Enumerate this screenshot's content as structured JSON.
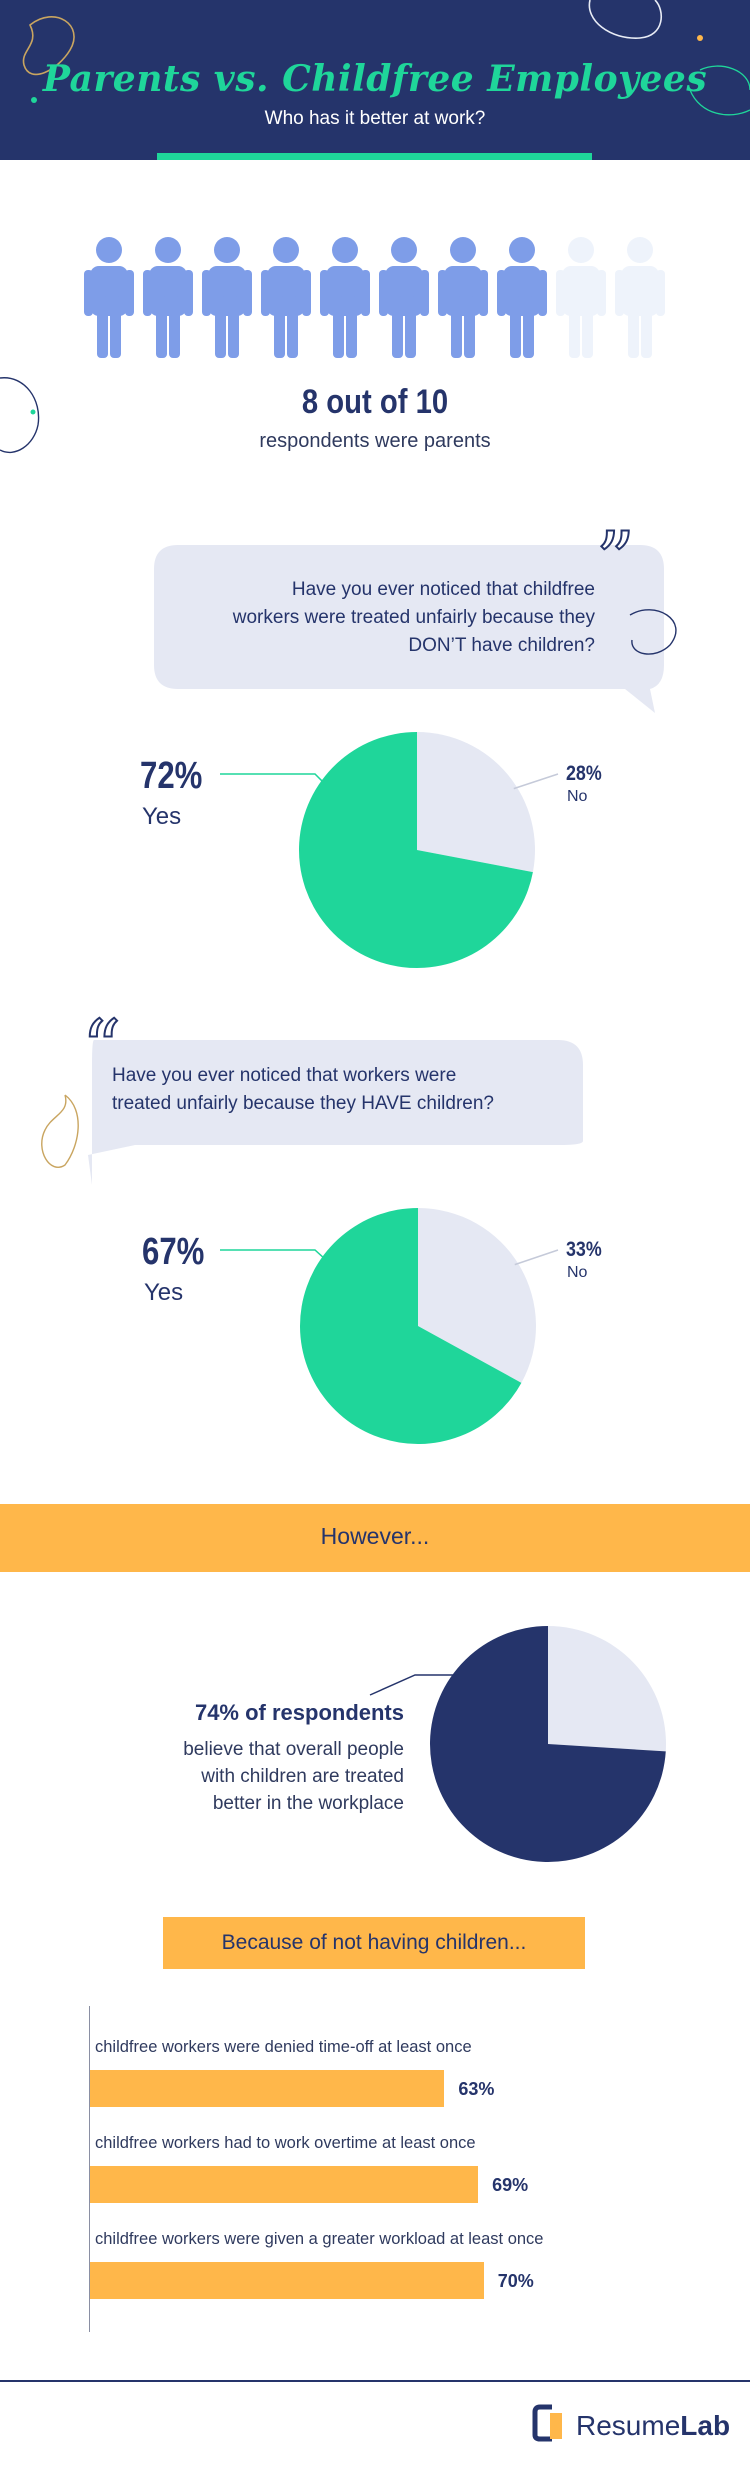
{
  "header": {
    "title": "Parents vs. Childfree Employees",
    "subtitle": "Who has it better at work?"
  },
  "people": {
    "filled": 8,
    "total": 10,
    "headline": "8 out of 10",
    "caption": "respondents were parents"
  },
  "question1": {
    "text_lines": [
      "Have you ever noticed that childfree",
      "workers were treated unfairly because they",
      "DON’T have children?"
    ],
    "yes_pct": "72%",
    "yes_label": "Yes",
    "no_pct": "28%",
    "no_label": "No",
    "yes_value": 72
  },
  "question2": {
    "text_lines": [
      "Have you ever noticed that workers were",
      "treated unfairly because they HAVE children?"
    ],
    "yes_pct": "67%",
    "yes_label": "Yes",
    "no_pct": "33%",
    "no_label": "No",
    "yes_value": 67
  },
  "however": {
    "text": "However..."
  },
  "respondents": {
    "headline": "74% of respondents",
    "text_lines": [
      "believe that overall people",
      "with children are treated",
      "better in the workplace"
    ],
    "value": 74
  },
  "because": {
    "text": "Because of not having children..."
  },
  "bars": [
    {
      "label": "childfree workers were denied time-off at least once",
      "value_text": "63%",
      "value": 63
    },
    {
      "label": "childfree workers had to work overtime at least once",
      "value_text": "69%",
      "value": 69
    },
    {
      "label": "childfree workers were given a greater workload at least once",
      "value_text": "70%",
      "value": 70
    }
  ],
  "footer": {
    "brand_part1": "Resume",
    "brand_part2": "Lab"
  },
  "colors": {
    "navy": "#25346b",
    "green": "#1fd69a",
    "orange": "#ffb74a",
    "blue_person": "#7e9de8",
    "light_person": "#eef3fb",
    "pie_light": "#e5e8f3"
  },
  "chart_data": [
    {
      "type": "pie",
      "categories": [
        "Yes",
        "No"
      ],
      "values": [
        72,
        28
      ]
    },
    {
      "type": "pie",
      "categories": [
        "Yes",
        "No"
      ],
      "values": [
        67,
        33
      ]
    },
    {
      "type": "pie",
      "values": [
        74,
        26
      ]
    },
    {
      "type": "bar",
      "categories": [
        "childfree workers were denied time-off at least once",
        "childfree workers had to work overtime at least once",
        "childfree workers were given a greater workload at least once"
      ],
      "values": [
        63,
        69,
        70
      ]
    }
  ]
}
